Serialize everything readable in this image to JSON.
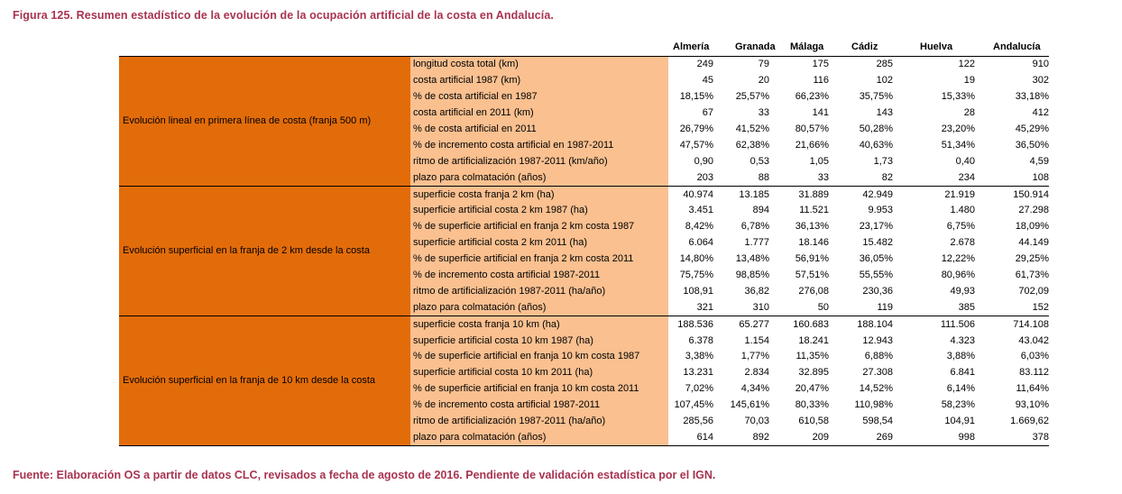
{
  "title": "Figura 125. Resumen estadístico de la evolución de la ocupación artificial de la costa en Andalucía.",
  "source": "Fuente: Elaboración OS a partir de datos CLC, revisados a fecha de agosto de 2016. Pendiente de validación estadística por el IGN.",
  "colors": {
    "section_bg": "#e36c0a",
    "label_bg": "#fac090",
    "title_color": "#a8334f"
  },
  "columns": [
    "Almería",
    "Granada",
    "Málaga",
    "Cádiz",
    "Huelva",
    "Andalucía"
  ],
  "sections": [
    {
      "name": "Evolución lineal en primera línea de costa (franja 500 m)",
      "rows": [
        {
          "label": "longitud costa total (km)",
          "values": [
            "249",
            "79",
            "175",
            "285",
            "122",
            "910"
          ]
        },
        {
          "label": "costa artificial 1987 (km)",
          "values": [
            "45",
            "20",
            "116",
            "102",
            "19",
            "302"
          ]
        },
        {
          "label": "% de costa artificial en 1987",
          "values": [
            "18,15%",
            "25,57%",
            "66,23%",
            "35,75%",
            "15,33%",
            "33,18%"
          ]
        },
        {
          "label": "costa artificial en 2011 (km)",
          "values": [
            "67",
            "33",
            "141",
            "143",
            "28",
            "412"
          ]
        },
        {
          "label": "% de costa artificial en 2011",
          "values": [
            "26,79%",
            "41,52%",
            "80,57%",
            "50,28%",
            "23,20%",
            "45,29%"
          ]
        },
        {
          "label": "% de incremento costa artificial en 1987-2011",
          "values": [
            "47,57%",
            "62,38%",
            "21,66%",
            "40,63%",
            "51,34%",
            "36,50%"
          ]
        },
        {
          "label": "ritmo de artificialización 1987-2011 (km/año)",
          "values": [
            "0,90",
            "0,53",
            "1,05",
            "1,73",
            "0,40",
            "4,59"
          ]
        },
        {
          "label": "plazo para colmatación (años)",
          "values": [
            "203",
            "88",
            "33",
            "82",
            "234",
            "108"
          ]
        }
      ]
    },
    {
      "name": "Evolución superficial en la franja de 2 km desde la costa",
      "rows": [
        {
          "label": "superficie costa franja 2 km (ha)",
          "values": [
            "40.974",
            "13.185",
            "31.889",
            "42.949",
            "21.919",
            "150.914"
          ]
        },
        {
          "label": "superficie artificial costa 2 km 1987 (ha)",
          "values": [
            "3.451",
            "894",
            "11.521",
            "9.953",
            "1.480",
            "27.298"
          ]
        },
        {
          "label": "% de superficie artificial en franja 2 km costa 1987",
          "values": [
            "8,42%",
            "6,78%",
            "36,13%",
            "23,17%",
            "6,75%",
            "18,09%"
          ]
        },
        {
          "label": "superficie artificial costa 2 km 2011 (ha)",
          "values": [
            "6.064",
            "1.777",
            "18.146",
            "15.482",
            "2.678",
            "44.149"
          ]
        },
        {
          "label": "% de superficie artificial en franja 2 km costa 2011",
          "values": [
            "14,80%",
            "13,48%",
            "56,91%",
            "36,05%",
            "12,22%",
            "29,25%"
          ]
        },
        {
          "label": "% de incremento costa artificial 1987-2011",
          "values": [
            "75,75%",
            "98,85%",
            "57,51%",
            "55,55%",
            "80,96%",
            "61,73%"
          ]
        },
        {
          "label": "ritmo de artificialización 1987-2011 (ha/año)",
          "values": [
            "108,91",
            "36,82",
            "276,08",
            "230,36",
            "49,93",
            "702,09"
          ]
        },
        {
          "label": "plazo para colmatación (años)",
          "values": [
            "321",
            "310",
            "50",
            "119",
            "385",
            "152"
          ]
        }
      ]
    },
    {
      "name": "Evolución superficial en la franja de 10 km desde la costa",
      "rows": [
        {
          "label": "superficie costa franja 10 km (ha)",
          "values": [
            "188.536",
            "65.277",
            "160.683",
            "188.104",
            "111.506",
            "714.108"
          ]
        },
        {
          "label": "superficie artificial costa 10 km 1987 (ha)",
          "values": [
            "6.378",
            "1.154",
            "18.241",
            "12.943",
            "4.323",
            "43.042"
          ]
        },
        {
          "label": "% de superficie artificial en franja 10 km costa 1987",
          "values": [
            "3,38%",
            "1,77%",
            "11,35%",
            "6,88%",
            "3,88%",
            "6,03%"
          ]
        },
        {
          "label": "superficie artificial costa 10 km 2011 (ha)",
          "values": [
            "13.231",
            "2.834",
            "32.895",
            "27.308",
            "6.841",
            "83.112"
          ]
        },
        {
          "label": "% de superficie artificial en franja 10 km costa 2011",
          "values": [
            "7,02%",
            "4,34%",
            "20,47%",
            "14,52%",
            "6,14%",
            "11,64%"
          ]
        },
        {
          "label": "% de incremento costa artificial 1987-2011",
          "values": [
            "107,45%",
            "145,61%",
            "80,33%",
            "110,98%",
            "58,23%",
            "93,10%"
          ]
        },
        {
          "label": "ritmo de artificialización 1987-2011 (ha/año)",
          "values": [
            "285,56",
            "70,03",
            "610,58",
            "598,54",
            "104,91",
            "1.669,62"
          ]
        },
        {
          "label": "plazo para colmatación (años)",
          "values": [
            "614",
            "892",
            "209",
            "269",
            "998",
            "378"
          ]
        }
      ]
    }
  ]
}
